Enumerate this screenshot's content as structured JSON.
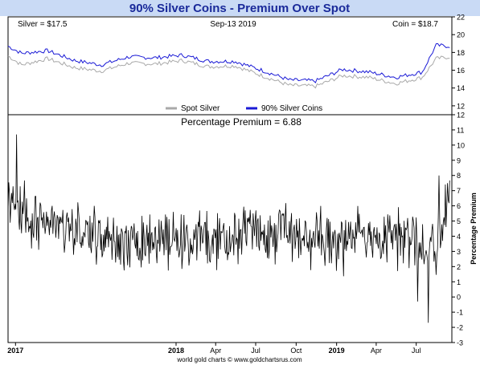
{
  "chart_data": [
    {
      "type": "line",
      "title": "90% Silver Coins - Premium Over Spot",
      "info_left": "Silver = $17.5",
      "info_center": "Sep-13  2019",
      "info_right": "Coin = $18.7",
      "ylim": [
        11,
        22
      ],
      "yticks": [
        "12",
        "14",
        "16",
        "18",
        "20",
        "22"
      ],
      "legend_position": "bottom-center",
      "legend": [
        {
          "label": "Spot Silver",
          "color": "#a9a9a9"
        },
        {
          "label": "90% Silver Coins",
          "color": "#1a1ad6"
        }
      ],
      "series": [
        {
          "name": "Spot Silver",
          "color": "#a9a9a9",
          "x": [
            "2016-12",
            "2017-01",
            "2017-03",
            "2017-05",
            "2017-07",
            "2017-09",
            "2017-11",
            "2018-01",
            "2018-03",
            "2018-05",
            "2018-07",
            "2018-09",
            "2018-11",
            "2019-01",
            "2019-03",
            "2019-05",
            "2019-07",
            "2019-08",
            "2019-09"
          ],
          "values": [
            17.6,
            16.6,
            17.3,
            16.3,
            15.9,
            16.8,
            16.7,
            17.1,
            16.4,
            16.5,
            15.4,
            14.3,
            14.2,
            15.4,
            15.2,
            14.5,
            15.2,
            17.3,
            17.5
          ]
        },
        {
          "name": "90% Silver Coins",
          "color": "#1a1ad6",
          "x": [
            "2016-12",
            "2017-01",
            "2017-03",
            "2017-05",
            "2017-07",
            "2017-09",
            "2017-11",
            "2018-01",
            "2018-03",
            "2018-05",
            "2018-07",
            "2018-09",
            "2018-11",
            "2019-01",
            "2019-03",
            "2019-05",
            "2019-07",
            "2019-08",
            "2019-09"
          ],
          "values": [
            18.7,
            17.9,
            18.2,
            17.1,
            16.6,
            17.5,
            17.4,
            17.7,
            17.0,
            17.0,
            16.0,
            14.9,
            14.8,
            16.1,
            15.8,
            15.2,
            15.8,
            18.8,
            18.7
          ]
        }
      ]
    },
    {
      "type": "line",
      "title": "Percentage Premium = 6.88",
      "ylabel": "Percentage Premium",
      "ylim": [
        -3,
        12
      ],
      "yticks": [
        "-3",
        "-2",
        "-1",
        "0",
        "1",
        "2",
        "3",
        "4",
        "5",
        "6",
        "7",
        "8",
        "9",
        "10",
        "11",
        "12"
      ],
      "xlabels": [
        "2017",
        "2018",
        "Apr",
        "Jul",
        "Oct",
        "2019",
        "Apr",
        "Jul"
      ],
      "series": [
        {
          "name": "Percentage Premium",
          "color": "#000000",
          "x": [
            "2016-12",
            "2017-01",
            "2017-02",
            "2017-03",
            "2017-04",
            "2017-05",
            "2017-06",
            "2017-07",
            "2017-08",
            "2017-09",
            "2017-10",
            "2017-11",
            "2017-12",
            "2018-01",
            "2018-02",
            "2018-03",
            "2018-04",
            "2018-05",
            "2018-06",
            "2018-07",
            "2018-08",
            "2018-09",
            "2018-10",
            "2018-11",
            "2018-12",
            "2019-01",
            "2019-02",
            "2019-03",
            "2019-04",
            "2019-05",
            "2019-06",
            "2019-07",
            "2019-08",
            "2019-09"
          ],
          "values": [
            6.5,
            6.0,
            4.5,
            5.0,
            5.0,
            4.4,
            4.1,
            4.0,
            3.6,
            3.5,
            3.6,
            3.8,
            3.7,
            4.0,
            3.9,
            3.8,
            3.9,
            3.9,
            4.2,
            4.0,
            4.1,
            4.3,
            4.2,
            3.8,
            3.9,
            3.6,
            4.0,
            4.0,
            3.8,
            4.0,
            3.9,
            3.4,
            2.8,
            6.9
          ]
        }
      ]
    }
  ],
  "footer": "world gold charts © www.goldchartsrus.com"
}
